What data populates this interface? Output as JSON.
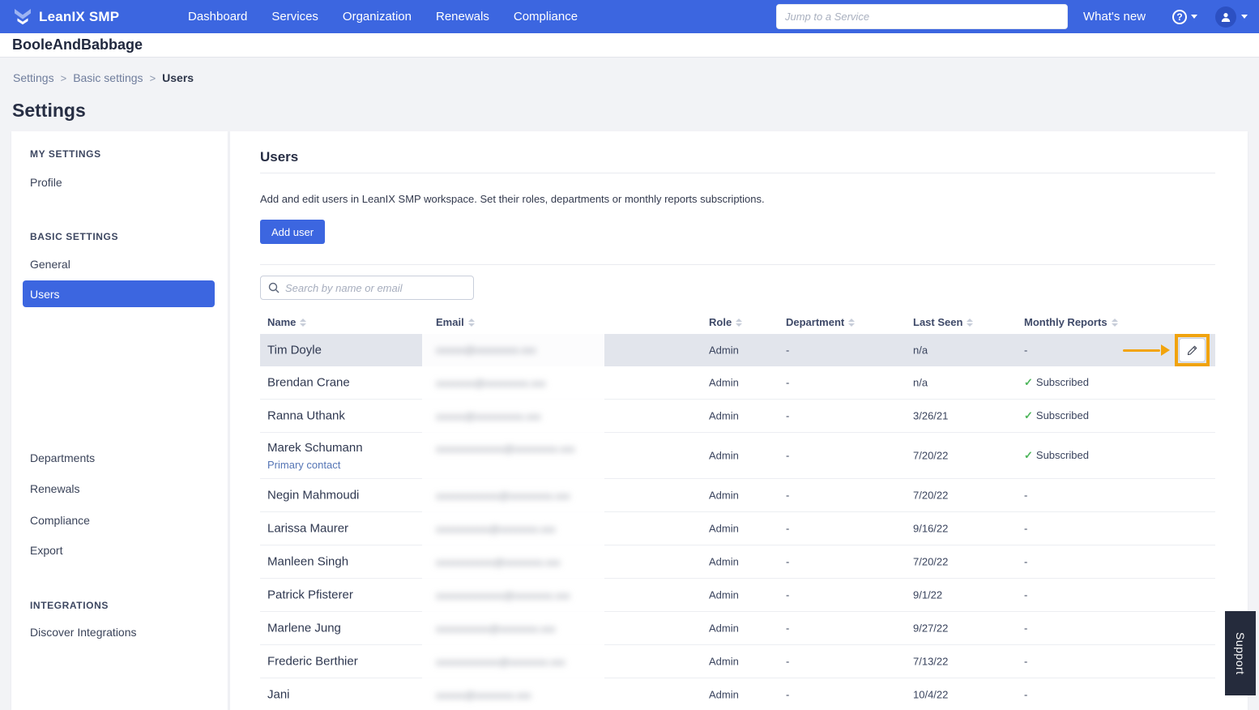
{
  "topbar": {
    "brand": "LeanIX SMP",
    "nav": [
      "Dashboard",
      "Services",
      "Organization",
      "Renewals",
      "Compliance"
    ],
    "search_placeholder": "Jump to a Service",
    "whats_new": "What's new",
    "help_glyph": "?",
    "icons": [
      "leanix-logo-icon",
      "help-icon",
      "user-avatar-icon",
      "chevron-down-icon"
    ]
  },
  "workspace_name": "BooleAndBabbage",
  "breadcrumb": {
    "links": [
      "Settings",
      "Basic settings"
    ],
    "current": "Users",
    "separator": ">"
  },
  "page_title": "Settings",
  "sidebar": {
    "sections": [
      {
        "title": "MY SETTINGS",
        "items": [
          {
            "label": "Profile",
            "active": false
          }
        ]
      },
      {
        "title": "BASIC SETTINGS",
        "items": [
          {
            "label": "General",
            "active": false
          },
          {
            "label": "Users",
            "active": true
          },
          {
            "label": "Departments",
            "active": false
          },
          {
            "label": "Renewals",
            "active": false
          },
          {
            "label": "Compliance",
            "active": false
          },
          {
            "label": "Export",
            "active": false
          }
        ]
      },
      {
        "title": "INTEGRATIONS",
        "items": [
          {
            "label": "Discover Integrations",
            "active": false
          }
        ]
      }
    ]
  },
  "main": {
    "title": "Users",
    "description": "Add and edit users in LeanIX SMP workspace. Set their roles, departments or monthly reports subscriptions.",
    "add_user_label": "Add user",
    "search_placeholder": "Search by name or email",
    "table": {
      "columns": [
        "Name",
        "Email",
        "Role",
        "Department",
        "Last Seen",
        "Monthly Reports"
      ],
      "rows": [
        {
          "name": "Tim Doyle",
          "email_redacted": "xxxxxx@xxxxxxxxx.xxx",
          "role": "Admin",
          "department": "-",
          "last_seen": "n/a",
          "monthly_reports": "-",
          "highlighted": true
        },
        {
          "name": "Brendan Crane",
          "email_redacted": "xxxxxxxx@xxxxxxxxx.xxx",
          "role": "Admin",
          "department": "-",
          "last_seen": "n/a",
          "monthly_reports": "Subscribed"
        },
        {
          "name": "Ranna Uthank",
          "email_redacted": "xxxxxx@xxxxxxxxxx.xxx",
          "role": "Admin",
          "department": "-",
          "last_seen": "3/26/21",
          "monthly_reports": "Subscribed"
        },
        {
          "name": "Marek Schumann",
          "sub_label": "Primary contact",
          "email_redacted": "xxxxxxxxxxxxxx@xxxxxxxxx.xxx",
          "role": "Admin",
          "department": "-",
          "last_seen": "7/20/22",
          "monthly_reports": "Subscribed"
        },
        {
          "name": "Negin Mahmoudi",
          "email_redacted": "xxxxxxxxxxxxx@xxxxxxxxx.xxx",
          "role": "Admin",
          "department": "-",
          "last_seen": "7/20/22",
          "monthly_reports": "-"
        },
        {
          "name": "Larissa Maurer",
          "email_redacted": "xxxxxxxxxxx@xxxxxxxx.xxx",
          "role": "Admin",
          "department": "-",
          "last_seen": "9/16/22",
          "monthly_reports": "-"
        },
        {
          "name": "Manleen Singh",
          "email_redacted": "xxxxxxxxxxxx@xxxxxxxx.xxx",
          "role": "Admin",
          "department": "-",
          "last_seen": "7/20/22",
          "monthly_reports": "-"
        },
        {
          "name": "Patrick Pfisterer",
          "email_redacted": "xxxxxxxxxxxxxx@xxxxxxxx.xxx",
          "role": "Admin",
          "department": "-",
          "last_seen": "9/1/22",
          "monthly_reports": "-"
        },
        {
          "name": "Marlene Jung",
          "email_redacted": "xxxxxxxxxxx@xxxxxxxx.xxx",
          "role": "Admin",
          "department": "-",
          "last_seen": "9/27/22",
          "monthly_reports": "-"
        },
        {
          "name": "Frederic Berthier",
          "email_redacted": "xxxxxxxxxxxxx@xxxxxxxx.xxx",
          "role": "Admin",
          "department": "-",
          "last_seen": "7/13/22",
          "monthly_reports": "-"
        },
        {
          "name": "Jani",
          "email_redacted": "xxxxxx@xxxxxxxx.xxx",
          "role": "Admin",
          "department": "-",
          "last_seen": "10/4/22",
          "monthly_reports": "-"
        }
      ]
    }
  },
  "support_tab_label": "Support",
  "colors": {
    "brand_blue": "#3c66e0",
    "avatar_blue": "#2c50c2",
    "highlight_row": "#e2e5ec",
    "annotation_orange": "#f2a40d",
    "subscribed_green": "#4db65b",
    "support_tab_bg": "#252b3c",
    "dark_text": "#272e44",
    "page_bg": "#f2f3f6"
  }
}
